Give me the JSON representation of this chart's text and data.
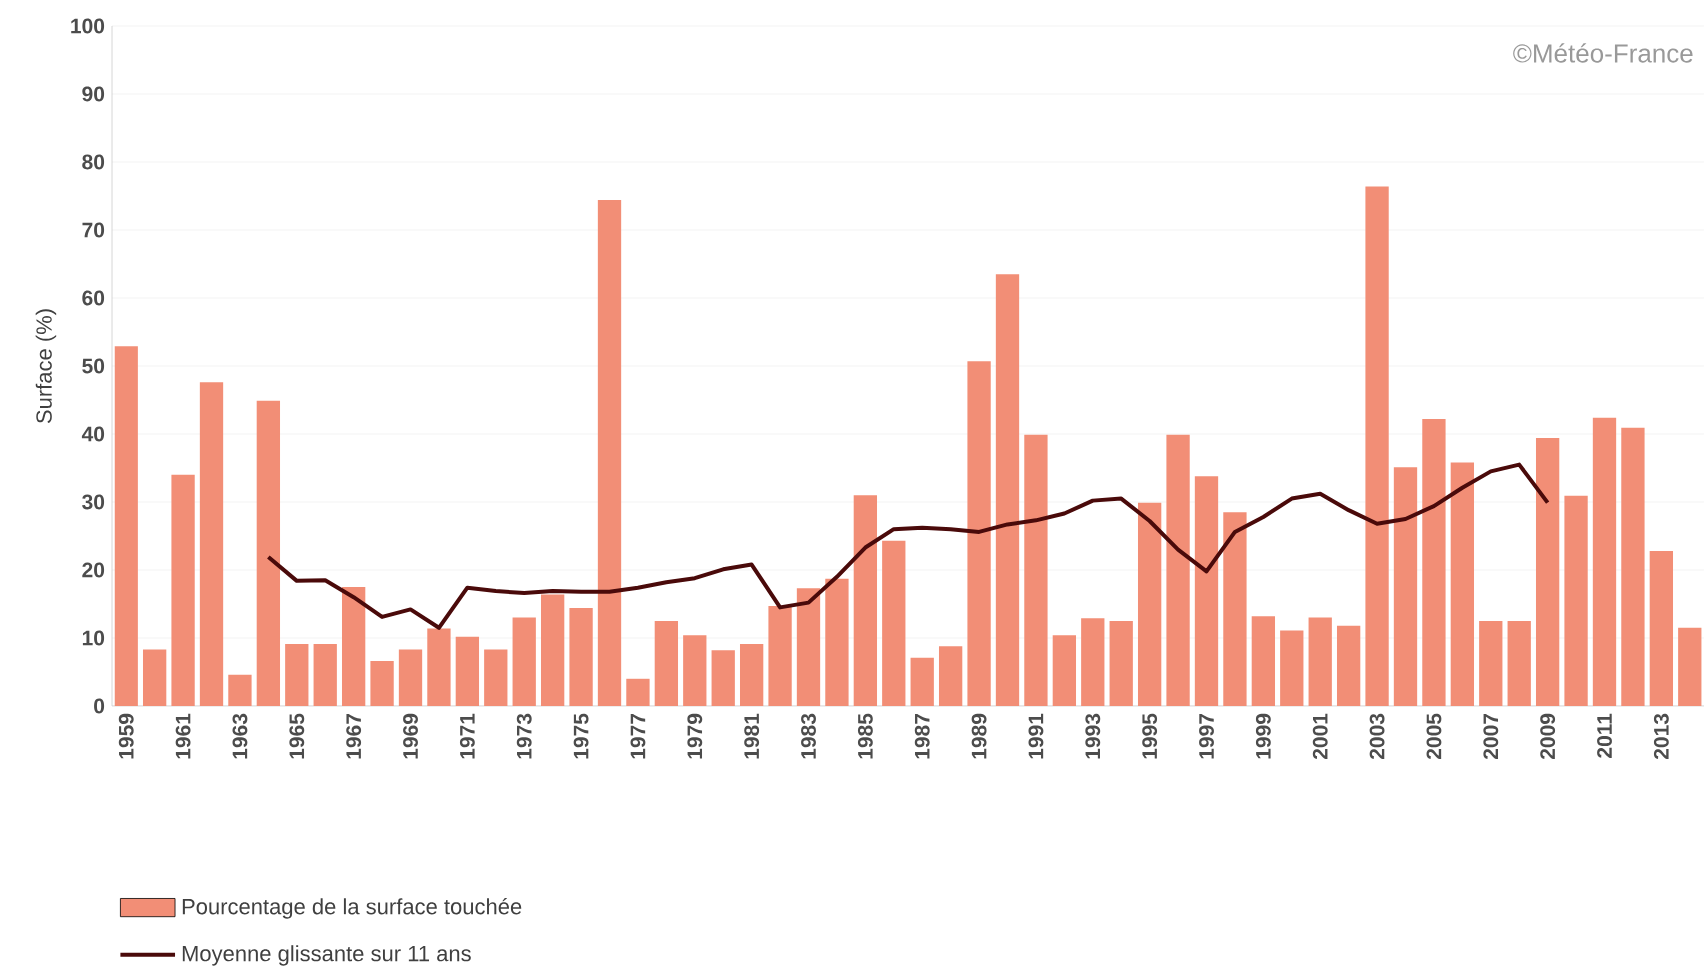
{
  "chart_data": {
    "type": "bar",
    "ylabel": "Surface (%)",
    "categories": [
      "1959",
      null,
      "1961",
      null,
      "1963",
      null,
      "1965",
      null,
      "1967",
      null,
      "1969",
      null,
      "1971",
      null,
      "1973",
      null,
      "1975",
      null,
      "1977",
      null,
      "1979",
      null,
      "1981",
      null,
      "1983",
      null,
      "1985",
      null,
      "1987",
      null,
      "1989",
      null,
      "1991",
      null,
      "1993",
      null,
      "1995",
      null,
      "1997",
      null,
      "1999",
      null,
      "2001",
      null,
      "2003",
      null,
      "2005",
      null,
      "2007",
      null,
      "2009",
      null,
      "2011",
      null,
      "2013",
      null
    ],
    "series": [
      {
        "name": "Pourcentage de la surface touchée",
        "color": "#f28e76",
        "values": [
          52.9,
          8.3,
          34,
          47.6,
          4.6,
          44.9,
          9.1,
          9.1,
          17.5,
          6.6,
          8.3,
          11.4,
          10.2,
          8.3,
          13,
          16.4,
          14.4,
          74.4,
          4,
          12.5,
          10.4,
          8.2,
          9.1,
          14.7,
          17.3,
          18.7,
          31,
          24.3,
          7.1,
          8.8,
          50.7,
          63.5,
          39.9,
          10.4,
          12.9,
          12.5,
          29.9,
          39.9,
          33.8,
          28.5,
          13.2,
          11.1,
          13,
          11.8,
          76.4,
          35.1,
          42.2,
          35.8,
          12.5,
          12.5,
          39.4,
          30.9,
          42.4,
          40.9,
          22.8,
          11.5
        ]
      },
      {
        "name": "Moyenne glissante sur 11 ans",
        "type": "line",
        "color": "#4a0a0a",
        "values": [
          null,
          null,
          null,
          null,
          null,
          21.9,
          18.4,
          18.5,
          16,
          13.1,
          14.2,
          11.5,
          17.4,
          16.9,
          16.6,
          16.9,
          16.8,
          16.8,
          17.4,
          18.2,
          18.8,
          20.1,
          20.8,
          14.5,
          15.2,
          19,
          23.3,
          26,
          26.2,
          26,
          25.6,
          26.7,
          27.3,
          28.3,
          30.2,
          30.5,
          27.2,
          23,
          19.8,
          25.6,
          27.8,
          30.5,
          31.2,
          28.8,
          26.8,
          27.5,
          29.4,
          32.1,
          34.5,
          35.5,
          29.9,
          null,
          null,
          null,
          null,
          null
        ]
      }
    ],
    "ylim": [
      0,
      100
    ],
    "yticks": [
      0,
      10,
      20,
      30,
      40,
      50,
      60,
      70,
      80,
      90,
      100
    ],
    "grid": "y",
    "legend": "bottom",
    "annotations": [
      "©Météo-France"
    ]
  }
}
